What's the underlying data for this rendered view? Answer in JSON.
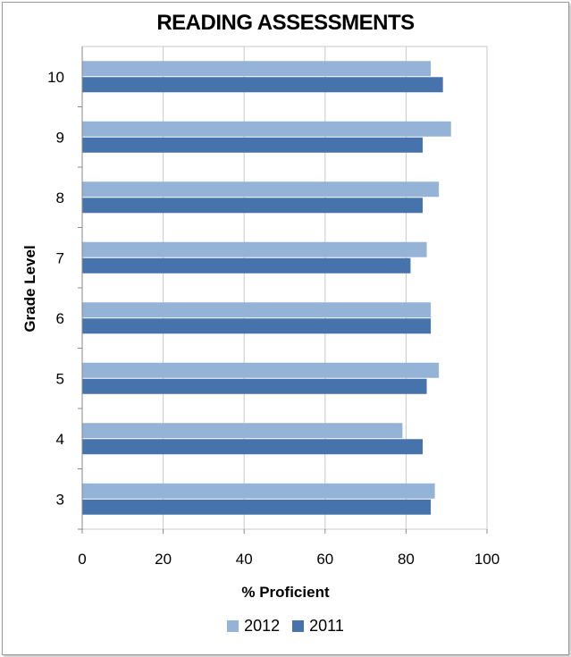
{
  "chart_data": {
    "type": "bar",
    "orientation": "horizontal",
    "title": "READING ASSESSMENTS",
    "xlabel": "% Proficient",
    "ylabel": "Grade Level",
    "categories": [
      "3",
      "4",
      "5",
      "6",
      "7",
      "8",
      "9",
      "10"
    ],
    "series": [
      {
        "name": "2012",
        "color": "#95B3D7",
        "values": [
          87,
          79,
          88,
          86,
          85,
          88,
          91,
          86
        ]
      },
      {
        "name": "2011",
        "color": "#4673AB",
        "values": [
          86,
          84,
          85,
          86,
          81,
          84,
          84,
          89
        ]
      }
    ],
    "xlim": [
      0,
      100
    ],
    "xticks": [
      "0",
      "20",
      "40",
      "60",
      "80",
      "100"
    ],
    "grid": "vertical",
    "legend": "bottom"
  }
}
